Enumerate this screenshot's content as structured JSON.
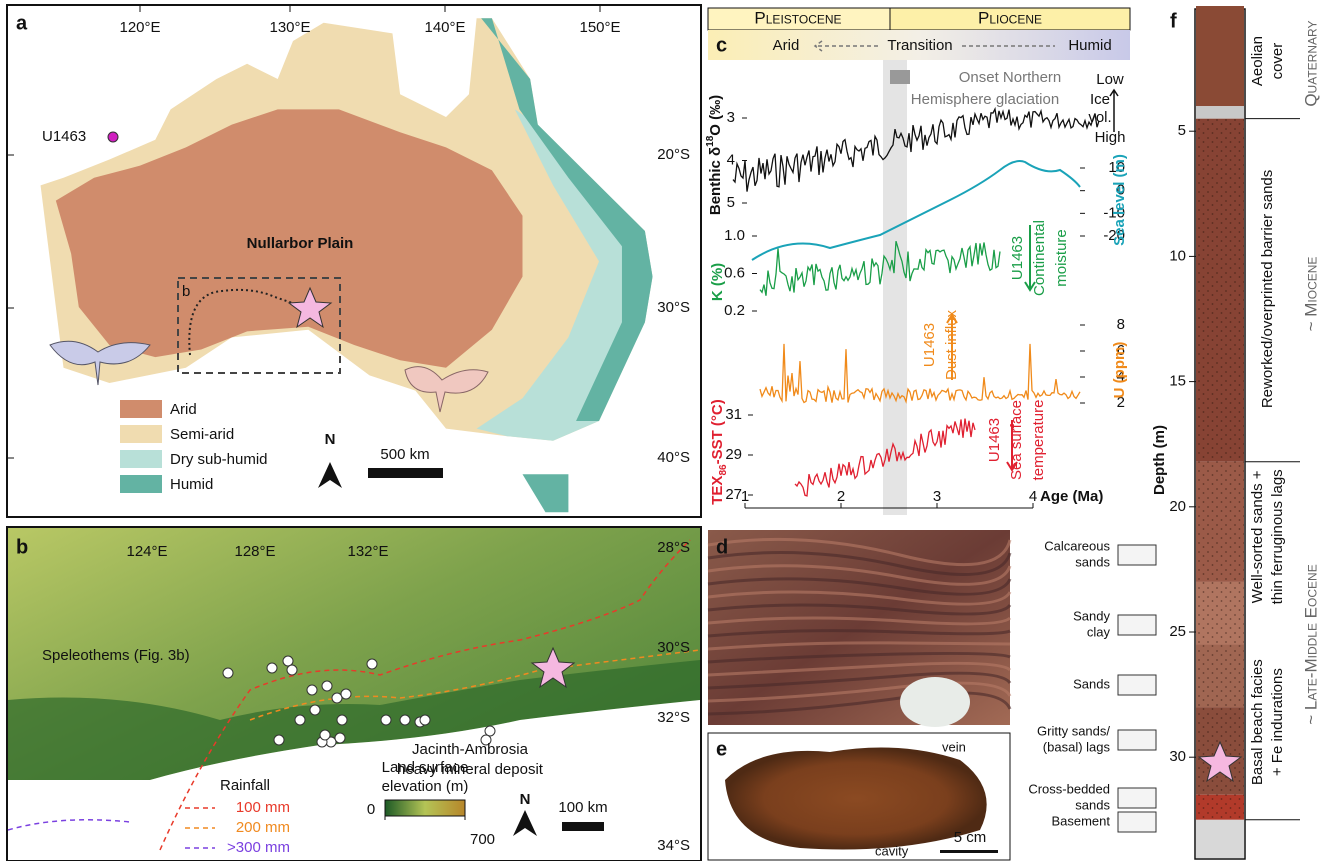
{
  "figure": {
    "a": {
      "label": "a",
      "lon_labels": [
        "120°E",
        "130°E",
        "140°E",
        "150°E"
      ],
      "lat_labels": [
        "20°S",
        "30°S",
        "40°S"
      ],
      "site": "U1463",
      "region": "Nullarbor Plain",
      "inset": "b",
      "legend": [
        "Arid",
        "Semi-arid",
        "Dry sub-humid",
        "Humid"
      ],
      "north": "N",
      "scale_bar": "500 km"
    },
    "b": {
      "label": "b",
      "lon_labels": [
        "124°E",
        "128°E",
        "132°E"
      ],
      "lat_labels": [
        "28°S",
        "30°S",
        "32°S",
        "34°S"
      ],
      "speleothems": "Speleothems (Fig. 3b)",
      "deposit": [
        "Jacinth-Ambrosia",
        "heavy mineral deposit"
      ],
      "rainfall_title": "Rainfall",
      "rainfall": [
        "100 mm",
        "200 mm",
        ">300 mm"
      ],
      "elevation_title": [
        "Land surface",
        "elevation (m)"
      ],
      "elevation_ticks": [
        0,
        700
      ],
      "north": "N",
      "scale_bar": "100 km"
    },
    "c": {
      "label": "c",
      "epochs": [
        "Pleistocene",
        "Pliocene"
      ],
      "climate": [
        "Arid",
        "Transition",
        "Humid"
      ],
      "glaciation": [
        "Onset Northern",
        "Hemisphere glaciation"
      ],
      "ice_volume": [
        "Low",
        "Ice",
        "vol.",
        "High"
      ],
      "d18o": {
        "label": [
          "Benthic δ",
          "18",
          "O (‰)"
        ],
        "ticks": [
          3,
          4,
          5
        ]
      },
      "potassium": {
        "label": "K (%)",
        "ticks": [
          {
            "value": 1,
            "label": "1.0"
          },
          0.6,
          0.2
        ]
      },
      "sea_level": {
        "label": "Sea level (m)",
        "ticks": [
          10,
          0,
          -10,
          -20
        ]
      },
      "uranium": {
        "label": "U (ppm)",
        "ticks": [
          8,
          6,
          4,
          2
        ]
      },
      "sst": {
        "label": [
          "TEX",
          "86",
          "-SST (°C)"
        ],
        "ticks": [
          31,
          29,
          27
        ]
      },
      "age": {
        "label": "Age (Ma)",
        "ticks": [
          1,
          2,
          3,
          4
        ]
      },
      "notes": {
        "moisture": [
          "U1463",
          "Continental",
          "moisture"
        ],
        "dust": [
          "U1463",
          "Dust influx"
        ],
        "temperature": [
          "U1463",
          "Sea surface",
          "temperature"
        ]
      }
    },
    "d": {
      "label": "d"
    },
    "e": {
      "label": "e",
      "vein": "vein",
      "cavity": "cavity",
      "scale_bar": "5 cm"
    },
    "lithology": [
      [
        "Calcareous",
        "sands"
      ],
      [
        "Sandy",
        "clay"
      ],
      [
        "Sands"
      ],
      [
        "Gritty sands/",
        "(basal) lags"
      ],
      [
        "Cross-bedded",
        "sands"
      ],
      [
        "Basement"
      ]
    ],
    "f": {
      "label": "f",
      "depth_label": "Depth (m)",
      "depth_ticks": [
        5,
        10,
        15,
        20,
        25,
        30
      ],
      "units": [
        [
          "Aeolian",
          "cover"
        ],
        [
          "Reworked/overprinted barrier sands"
        ],
        [
          "Well-sorted sands +",
          "thin ferruginous lags"
        ],
        [
          "Basal beach facies",
          "+ Fe indurations"
        ]
      ],
      "ages": [
        "Quaternary",
        "~ Miocene",
        "~ Late-Middle Eocene"
      ]
    }
  }
}
